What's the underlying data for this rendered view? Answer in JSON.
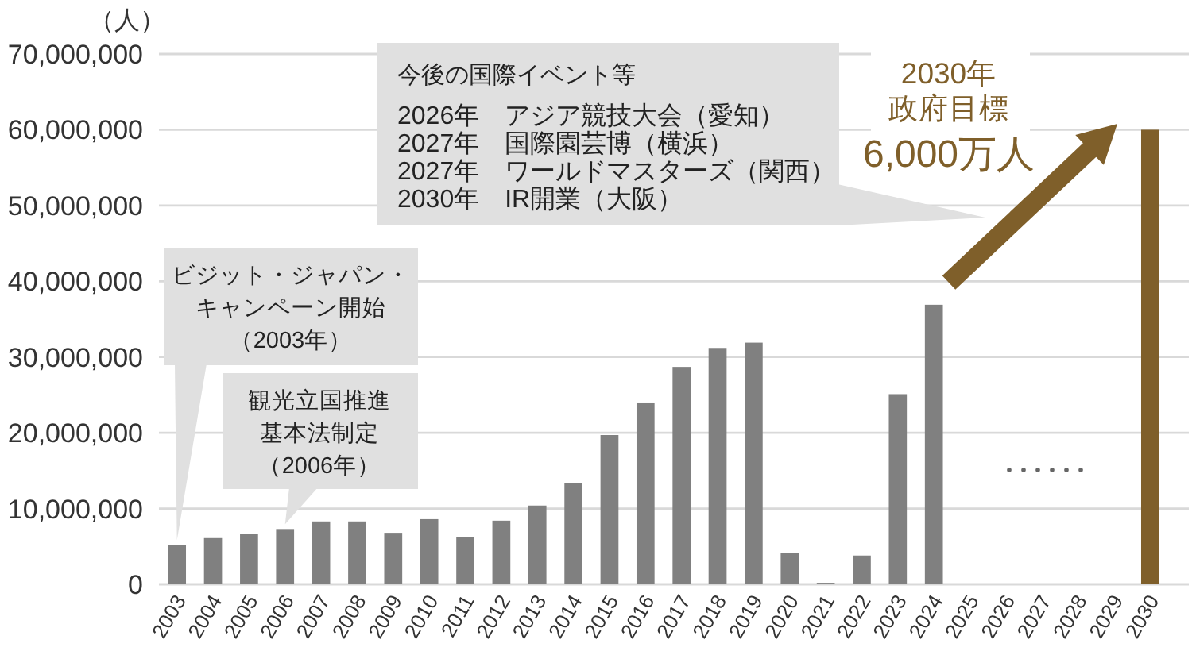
{
  "chart_data": {
    "type": "bar",
    "ylabel": "（人）",
    "categories": [
      "2003",
      "2004",
      "2005",
      "2006",
      "2007",
      "2008",
      "2009",
      "2010",
      "2011",
      "2012",
      "2013",
      "2014",
      "2015",
      "2016",
      "2017",
      "2018",
      "2019",
      "2020",
      "2021",
      "2022",
      "2023",
      "2024",
      "2025",
      "2026",
      "2027",
      "2028",
      "2029",
      "2030"
    ],
    "values": [
      5200000,
      6100000,
      6700000,
      7300000,
      8300000,
      8300000,
      6800000,
      8600000,
      6200000,
      8400000,
      10400000,
      13400000,
      19700000,
      24000000,
      28700000,
      31200000,
      31900000,
      4100000,
      200000,
      3800000,
      25100000,
      36900000,
      null,
      null,
      null,
      null,
      null,
      60000000
    ],
    "colors": [
      "#808080",
      "#808080",
      "#808080",
      "#808080",
      "#808080",
      "#808080",
      "#808080",
      "#808080",
      "#808080",
      "#808080",
      "#808080",
      "#808080",
      "#808080",
      "#808080",
      "#808080",
      "#808080",
      "#808080",
      "#808080",
      "#808080",
      "#808080",
      "#808080",
      "#808080",
      null,
      null,
      null,
      null,
      null,
      "#7f5f2a"
    ],
    "ylim": [
      0,
      70000000
    ],
    "yticks": [
      0,
      {
        "value": 10000000,
        "label": "10,000,000"
      },
      {
        "value": 20000000,
        "label": "20,000,000"
      },
      {
        "value": 30000000,
        "label": "30,000,000"
      },
      {
        "value": 40000000,
        "label": "40,000,000"
      },
      {
        "value": 50000000,
        "label": "50,000,000"
      },
      {
        "value": 60000000,
        "label": "60,000,000"
      },
      {
        "value": 70000000,
        "label": "70,000,000"
      }
    ],
    "grid": "y",
    "annotations": [
      {
        "text": "ビジット・ジャパン・キャンペーン開始（2003年）",
        "x": "2003",
        "y": 5200000
      },
      {
        "text": "観光立国推進基本法制定（2006年）",
        "x": "2006",
        "y": 7300000
      },
      "今後の国際イベント等\n2026年　アジア競技大会（愛知）\n2027年　国際園芸博（横浜）\n2027年　ワールドマスターズ（関西）\n2030年　IR開業（大阪）",
      "2030年政府目標",
      "6,000万人"
    ]
  }
}
